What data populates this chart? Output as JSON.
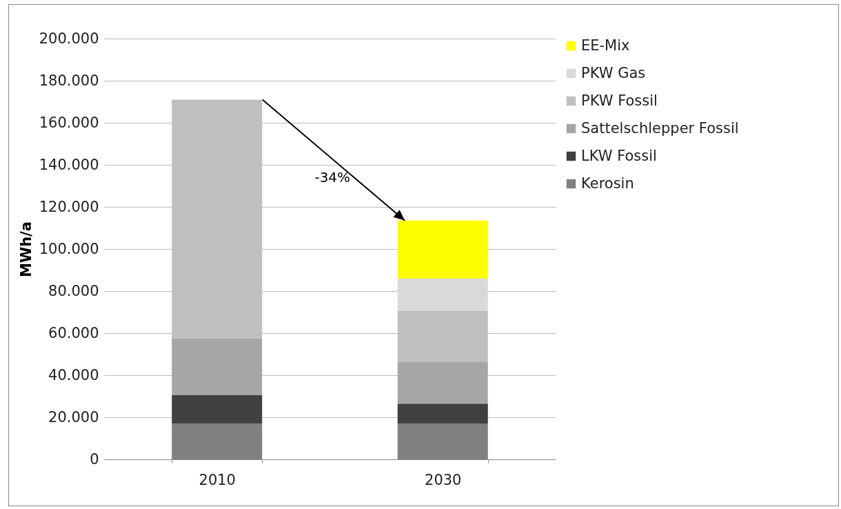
{
  "chart_data": {
    "type": "bar",
    "stacked": true,
    "ylabel": "MWh/a",
    "categories": [
      "2010",
      "2030"
    ],
    "series": [
      {
        "name": "Kerosin",
        "color": "#808080",
        "values": [
          17000,
          17000
        ]
      },
      {
        "name": "LKW Fossil",
        "color": "#404040",
        "values": [
          13500,
          9500
        ]
      },
      {
        "name": "Sattelschlepper Fossil",
        "color": "#a6a6a6",
        "values": [
          27000,
          20000
        ]
      },
      {
        "name": "PKW Fossil",
        "color": "#bfbfbf",
        "values": [
          113500,
          24000
        ]
      },
      {
        "name": "PKW Gas",
        "color": "#d9d9d9",
        "values": [
          0,
          15500
        ]
      },
      {
        "name": "EE-Mix",
        "color": "#ffff00",
        "values": [
          0,
          27500
        ]
      }
    ],
    "ylim": [
      0,
      200000
    ],
    "yticks": [
      {
        "value": 0,
        "label": "0"
      },
      {
        "value": 20000,
        "label": "20.000"
      },
      {
        "value": 40000,
        "label": "40.000"
      },
      {
        "value": 60000,
        "label": "60.000"
      },
      {
        "value": 80000,
        "label": "80.000"
      },
      {
        "value": 100000,
        "label": "100.000"
      },
      {
        "value": 120000,
        "label": "120.000"
      },
      {
        "value": 140000,
        "label": "140.000"
      },
      {
        "value": 160000,
        "label": "160.000"
      },
      {
        "value": 180000,
        "label": "180.000"
      },
      {
        "value": 200000,
        "label": "200.000"
      }
    ],
    "grid": "y",
    "legend": "right",
    "annotations": [
      "-34%"
    ]
  }
}
